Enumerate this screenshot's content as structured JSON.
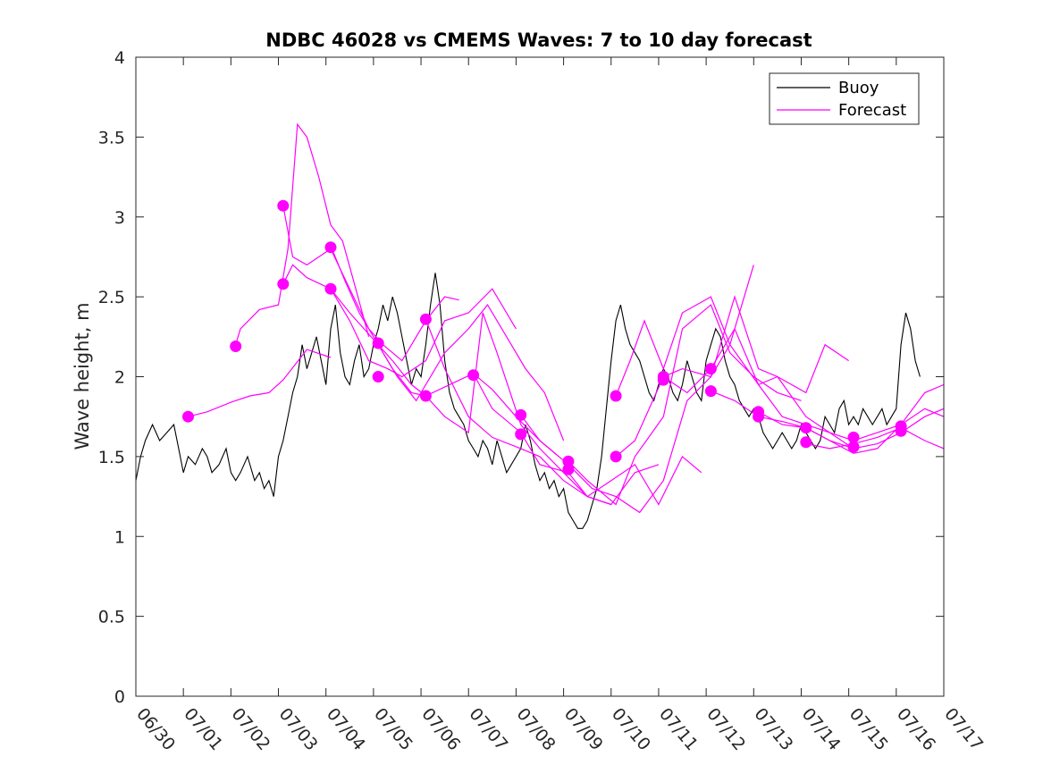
{
  "chart_data": {
    "type": "line",
    "title": "NDBC 46028 vs CMEMS Waves: 7 to 10 day forecast",
    "ylabel": "Wave height, m",
    "xlabel": "",
    "xlim": [
      0,
      17
    ],
    "ylim": [
      0,
      4
    ],
    "x_ticks": [
      0,
      1,
      2,
      3,
      4,
      5,
      6,
      7,
      8,
      9,
      10,
      11,
      12,
      13,
      14,
      15,
      16,
      17
    ],
    "x_tick_labels": [
      "06/30",
      "07/01",
      "07/02",
      "07/03",
      "07/04",
      "07/05",
      "07/06",
      "07/07",
      "07/08",
      "07/09",
      "07/10",
      "07/11",
      "07/12",
      "07/13",
      "07/14",
      "07/15",
      "07/16",
      "07/17"
    ],
    "y_ticks": [
      0,
      0.5,
      1,
      1.5,
      2,
      2.5,
      3,
      3.5,
      4
    ],
    "y_tick_labels": [
      "0",
      "0.5",
      "1",
      "1.5",
      "2",
      "2.5",
      "3",
      "3.5",
      "4"
    ],
    "grid": false,
    "legend": {
      "placement": "top-right",
      "entries": [
        {
          "label": "Buoy",
          "color": "#000000"
        },
        {
          "label": "Forecast",
          "color": "#ff00ff"
        }
      ]
    },
    "buoy": {
      "name": "Buoy",
      "color": "#000000",
      "x": [
        0,
        0.1,
        0.2,
        0.35,
        0.5,
        0.65,
        0.8,
        0.9,
        1.0,
        1.1,
        1.25,
        1.4,
        1.5,
        1.6,
        1.75,
        1.9,
        2.0,
        2.1,
        2.2,
        2.35,
        2.5,
        2.6,
        2.7,
        2.8,
        2.9,
        3.0,
        3.1,
        3.2,
        3.3,
        3.4,
        3.5,
        3.6,
        3.7,
        3.8,
        3.9,
        4.0,
        4.1,
        4.2,
        4.3,
        4.4,
        4.5,
        4.6,
        4.7,
        4.8,
        4.9,
        5.0,
        5.1,
        5.2,
        5.3,
        5.4,
        5.5,
        5.6,
        5.7,
        5.8,
        5.9,
        6.0,
        6.1,
        6.2,
        6.3,
        6.4,
        6.5,
        6.6,
        6.7,
        6.8,
        6.9,
        7.0,
        7.1,
        7.2,
        7.3,
        7.4,
        7.5,
        7.6,
        7.7,
        7.8,
        7.9,
        8.0,
        8.1,
        8.2,
        8.3,
        8.4,
        8.5,
        8.6,
        8.7,
        8.8,
        8.9,
        9.0,
        9.1,
        9.2,
        9.3,
        9.4,
        9.5,
        9.6,
        9.7,
        9.8,
        9.9,
        10.0,
        10.1,
        10.2,
        10.3,
        10.4,
        10.5,
        10.6,
        10.7,
        10.8,
        10.9,
        11.0,
        11.1,
        11.2,
        11.3,
        11.4,
        11.5,
        11.6,
        11.7,
        11.8,
        11.9,
        12.0,
        12.1,
        12.2,
        12.3,
        12.4,
        12.5,
        12.6,
        12.7,
        12.8,
        12.9,
        13.0,
        13.1,
        13.2,
        13.3,
        13.4,
        13.5,
        13.6,
        13.7,
        13.8,
        13.9,
        14.0,
        14.1,
        14.2,
        14.3,
        14.4,
        14.5,
        14.6,
        14.7,
        14.8,
        14.9,
        15.0,
        15.1,
        15.2,
        15.3,
        15.4,
        15.5,
        15.6,
        15.7,
        15.8,
        15.9,
        16.0,
        16.1,
        16.2,
        16.3,
        16.4,
        16.5
      ],
      "y": [
        1.35,
        1.5,
        1.6,
        1.7,
        1.6,
        1.65,
        1.7,
        1.55,
        1.4,
        1.5,
        1.45,
        1.55,
        1.5,
        1.4,
        1.45,
        1.55,
        1.4,
        1.35,
        1.4,
        1.5,
        1.35,
        1.4,
        1.3,
        1.35,
        1.25,
        1.5,
        1.6,
        1.75,
        1.9,
        2.0,
        2.2,
        2.05,
        2.15,
        2.25,
        2.1,
        1.95,
        2.3,
        2.45,
        2.15,
        2.0,
        1.95,
        2.1,
        2.2,
        2.0,
        2.05,
        2.2,
        2.3,
        2.45,
        2.35,
        2.5,
        2.4,
        2.25,
        2.1,
        1.95,
        2.05,
        2.0,
        2.2,
        2.45,
        2.65,
        2.45,
        2.1,
        1.9,
        1.8,
        1.75,
        1.7,
        1.6,
        1.55,
        1.5,
        1.6,
        1.55,
        1.45,
        1.6,
        1.5,
        1.4,
        1.45,
        1.5,
        1.55,
        1.7,
        1.6,
        1.45,
        1.35,
        1.4,
        1.3,
        1.35,
        1.25,
        1.3,
        1.15,
        1.1,
        1.05,
        1.05,
        1.1,
        1.2,
        1.3,
        1.5,
        1.8,
        2.1,
        2.35,
        2.45,
        2.3,
        2.2,
        2.15,
        2.1,
        2.0,
        1.9,
        1.85,
        1.95,
        2.05,
        2.0,
        1.9,
        1.85,
        1.95,
        2.1,
        2.0,
        1.9,
        1.85,
        2.1,
        2.2,
        2.3,
        2.25,
        2.1,
        2.0,
        1.95,
        1.85,
        1.8,
        1.75,
        1.8,
        1.75,
        1.65,
        1.6,
        1.55,
        1.6,
        1.65,
        1.6,
        1.55,
        1.6,
        1.7,
        1.65,
        1.6,
        1.55,
        1.6,
        1.75,
        1.7,
        1.65,
        1.8,
        1.85,
        1.7,
        1.75,
        1.7,
        1.8,
        1.75,
        1.7,
        1.75,
        1.8,
        1.7,
        1.75,
        1.8,
        2.2,
        2.4,
        2.3,
        2.1,
        2.0
      ]
    },
    "forecast_series": [
      {
        "x": [
          1.1,
          1.5,
          2.0,
          2.4,
          2.8,
          3.1,
          3.6,
          4.1
        ],
        "y": [
          1.75,
          1.78,
          1.84,
          1.88,
          1.9,
          1.98,
          2.17,
          2.12
        ]
      },
      {
        "x": [
          2.1,
          2.2,
          2.6,
          3.0,
          3.2,
          3.4,
          3.6,
          3.85,
          4.1,
          4.35,
          4.6,
          4.9
        ],
        "y": [
          2.2,
          2.3,
          2.42,
          2.45,
          2.8,
          3.58,
          3.5,
          3.25,
          2.95,
          2.85,
          2.58,
          2.25
        ]
      },
      {
        "x": [
          3.1,
          3.3,
          3.6,
          4.1,
          4.5,
          4.9,
          5.2,
          5.6,
          6.1,
          6.5,
          6.8
        ],
        "y": [
          3.07,
          2.75,
          2.7,
          2.8,
          2.55,
          2.3,
          2.2,
          2.1,
          2.35,
          2.5,
          2.48
        ]
      },
      {
        "x": [
          3.1,
          3.3,
          3.6,
          4.1,
          4.5,
          4.9,
          5.3,
          5.6,
          6.1,
          6.5,
          7.0,
          7.5,
          8.0
        ],
        "y": [
          2.58,
          2.7,
          2.62,
          2.55,
          2.35,
          2.1,
          2.05,
          2.0,
          2.1,
          2.35,
          2.4,
          2.55,
          2.3
        ]
      },
      {
        "x": [
          4.1,
          4.4,
          4.7,
          5.1,
          5.5,
          5.9,
          6.1,
          6.5,
          7.0,
          7.4,
          7.8,
          8.2,
          8.6,
          9.0
        ],
        "y": [
          2.82,
          2.6,
          2.4,
          2.2,
          2.0,
          1.85,
          1.95,
          2.15,
          2.3,
          2.45,
          2.25,
          2.05,
          1.9,
          1.6
        ]
      },
      {
        "x": [
          4.1,
          4.5,
          5.1,
          5.4,
          5.8,
          6.1,
          6.6,
          7.1,
          7.5,
          8.0,
          8.5,
          8.9
        ],
        "y": [
          2.55,
          2.4,
          2.2,
          2.05,
          1.9,
          1.88,
          1.95,
          2.02,
          1.92,
          1.75,
          1.6,
          1.5
        ]
      },
      {
        "x": [
          5.1,
          5.4,
          5.8,
          6.1,
          6.5,
          7.0,
          7.3,
          7.6,
          8.1,
          8.5,
          9.0,
          9.5,
          10.0
        ],
        "y": [
          2.2,
          2.1,
          1.95,
          1.88,
          1.75,
          1.65,
          2.4,
          2.15,
          1.7,
          1.55,
          1.4,
          1.25,
          1.2
        ]
      },
      {
        "x": [
          6.1,
          6.5,
          7.0,
          7.5,
          8.1,
          8.5,
          9.0,
          9.5,
          10.0,
          10.5,
          11.0
        ],
        "y": [
          2.36,
          2.05,
          1.75,
          1.62,
          1.55,
          1.5,
          1.35,
          1.25,
          1.2,
          1.4,
          1.45
        ]
      },
      {
        "x": [
          7.1,
          7.5,
          8.1,
          8.5,
          9.1,
          9.5,
          10.0,
          10.5,
          11.0,
          11.5,
          11.9
        ],
        "y": [
          2.02,
          1.8,
          1.65,
          1.45,
          1.4,
          1.25,
          1.35,
          1.45,
          1.2,
          1.5,
          1.4
        ]
      },
      {
        "x": [
          8.1,
          8.5,
          9.1,
          9.6,
          10.1,
          10.6,
          11.1,
          11.6,
          12.1,
          12.5,
          12.8,
          13.0
        ],
        "y": [
          1.76,
          1.6,
          1.45,
          1.3,
          1.25,
          1.15,
          1.35,
          1.85,
          2.0,
          2.2,
          2.5,
          2.7
        ]
      },
      {
        "x": [
          9.1,
          9.5,
          10.1,
          10.5,
          11.1,
          11.5,
          12.1,
          12.5,
          13.0,
          13.5,
          14.0
        ],
        "y": [
          1.47,
          1.35,
          1.2,
          1.5,
          1.75,
          2.3,
          2.45,
          2.15,
          2.0,
          1.9,
          1.85
        ]
      },
      {
        "x": [
          10.1,
          10.4,
          10.7,
          11.1,
          11.5,
          12.1,
          12.5,
          13.1,
          13.5,
          14.1,
          14.5,
          15.0
        ],
        "y": [
          1.88,
          2.1,
          2.35,
          2.05,
          2.4,
          2.5,
          2.2,
          1.95,
          2.0,
          1.9,
          2.2,
          2.1
        ]
      },
      {
        "x": [
          10.1,
          10.5,
          11.1,
          11.5,
          12.1,
          12.6,
          13.1,
          13.5,
          14.1,
          14.6,
          15.1
        ],
        "y": [
          1.5,
          1.6,
          2.0,
          2.05,
          2.0,
          2.5,
          2.05,
          2.0,
          1.75,
          1.65,
          1.55
        ]
      },
      {
        "x": [
          11.1,
          11.6,
          12.1,
          12.6,
          13.1,
          13.6,
          14.1,
          14.6,
          15.1,
          15.6,
          16.1,
          16.6,
          17.0
        ],
        "y": [
          2.0,
          1.9,
          2.05,
          2.3,
          1.95,
          1.75,
          1.7,
          1.65,
          1.6,
          1.65,
          1.7,
          1.8,
          1.75
        ]
      },
      {
        "x": [
          12.1,
          12.6,
          13.1,
          13.6,
          14.1,
          14.6,
          15.1,
          15.6,
          16.1,
          16.6,
          17.0
        ],
        "y": [
          1.91,
          1.85,
          1.75,
          1.72,
          1.68,
          1.6,
          1.52,
          1.55,
          1.7,
          1.9,
          1.95
        ]
      },
      {
        "x": [
          13.1,
          13.6,
          14.1,
          14.6,
          15.1,
          15.6,
          16.1,
          16.6,
          17.0
        ],
        "y": [
          1.78,
          1.7,
          1.68,
          1.6,
          1.55,
          1.58,
          1.65,
          1.75,
          1.8
        ]
      },
      {
        "x": [
          14.1,
          14.6,
          15.1,
          15.6,
          16.1,
          16.6,
          17.0
        ],
        "y": [
          1.58,
          1.55,
          1.58,
          1.62,
          1.68,
          1.6,
          1.55
        ]
      }
    ],
    "forecast_markers": {
      "name": "Forecast",
      "color": "#ff00ff",
      "x": [
        1.1,
        2.1,
        3.1,
        3.1,
        4.1,
        4.1,
        5.1,
        5.1,
        6.1,
        6.1,
        7.1,
        8.1,
        8.1,
        9.1,
        9.1,
        10.1,
        10.1,
        11.1,
        11.1,
        12.1,
        12.1,
        13.1,
        13.1,
        14.1,
        14.1,
        15.1,
        15.1,
        16.1,
        16.1
      ],
      "y": [
        1.75,
        2.19,
        3.07,
        2.58,
        2.81,
        2.55,
        2.21,
        2.0,
        2.36,
        1.88,
        2.01,
        1.76,
        1.64,
        1.47,
        1.42,
        1.88,
        1.5,
        2.0,
        1.98,
        2.05,
        1.91,
        1.78,
        1.75,
        1.68,
        1.59,
        1.62,
        1.56,
        1.69,
        1.66
      ]
    }
  }
}
